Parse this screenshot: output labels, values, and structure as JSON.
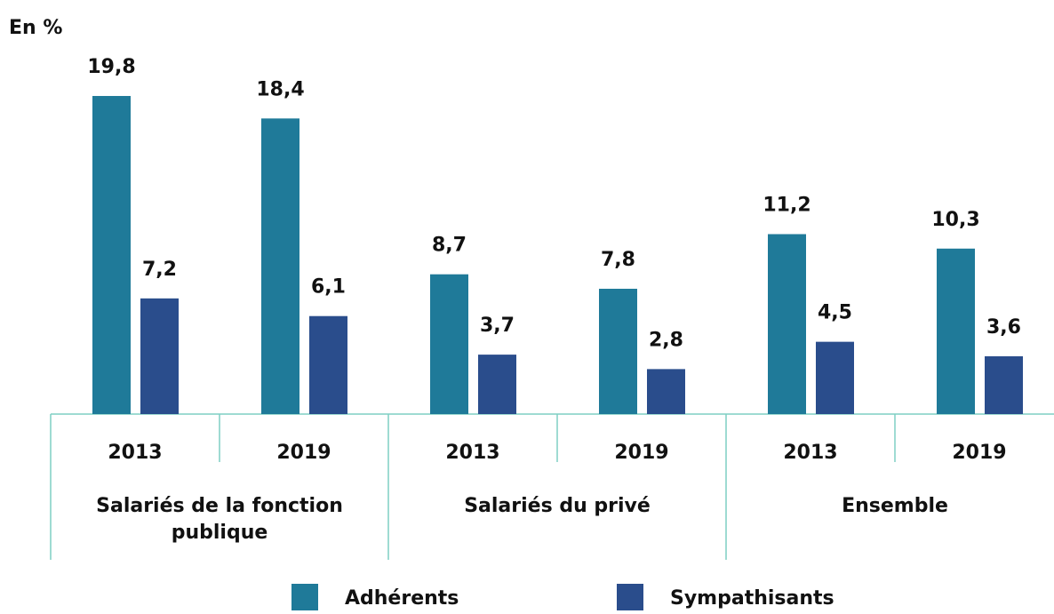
{
  "chart_data": {
    "type": "bar",
    "title": "En %",
    "categories": [
      "2013",
      "2019",
      "2013",
      "2019",
      "2013",
      "2019"
    ],
    "groups": [
      {
        "label": "Salariés de la fonction publique",
        "size": 2
      },
      {
        "label": "Salariés du privé",
        "size": 2
      },
      {
        "label": "Ensemble",
        "size": 2
      }
    ],
    "series": [
      {
        "name": "Adhérents",
        "color": "#1f7a99",
        "values": [
          19.8,
          18.4,
          8.7,
          7.8,
          11.2,
          10.3
        ],
        "value_labels": [
          "19,8",
          "18,4",
          "8,7",
          "7,8",
          "11,2",
          "10,3"
        ]
      },
      {
        "name": "Sympathisants",
        "color": "#2a4d8c",
        "values": [
          7.2,
          6.1,
          3.7,
          2.8,
          4.5,
          3.6
        ],
        "value_labels": [
          "7,2",
          "6,1",
          "3,7",
          "2,8",
          "4,5",
          "3,6"
        ]
      }
    ]
  }
}
